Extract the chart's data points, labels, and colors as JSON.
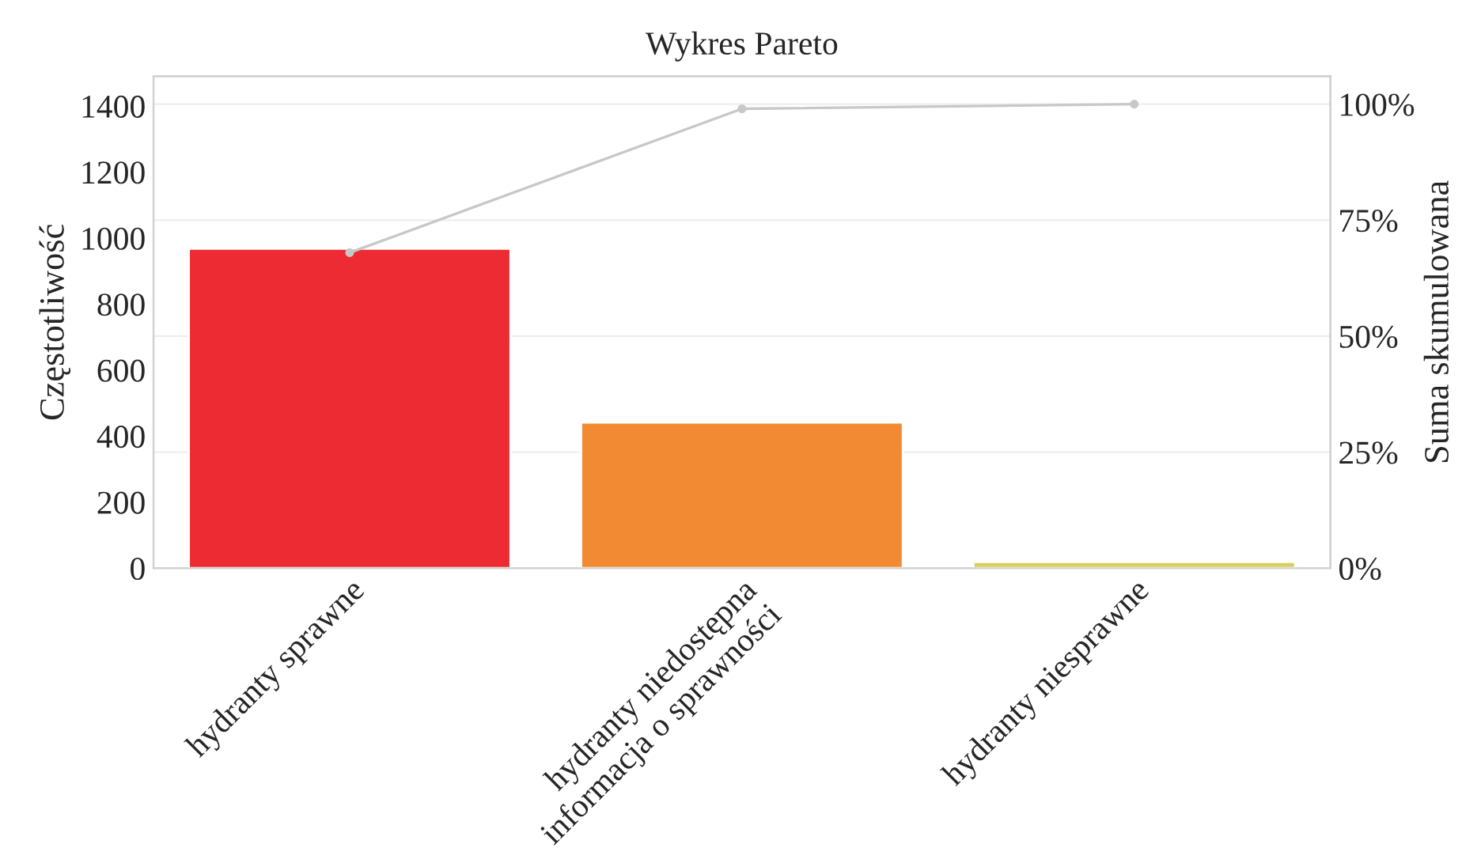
{
  "chart_data": {
    "type": "bar",
    "title": "Wykres Pareto",
    "ylabel": "Częstotliwość",
    "y2label": "Suma skumulowana",
    "categories": [
      "hydranty sprawne",
      "hydranty niedostępna\ninformacja o sprawności",
      "hydranty niesprawne"
    ],
    "series": [
      {
        "type": "bar",
        "colors": [
          "#ec2b32",
          "#f18a33",
          "#d9d05a"
        ],
        "values": [
          968,
          441,
          19
        ]
      },
      {
        "type": "line",
        "axis": "y2",
        "color": "#c8c8c8",
        "values": [
          68,
          99,
          100
        ],
        "marker": "circle"
      }
    ],
    "ylim": [
      0,
      1490
    ],
    "yticks": [
      0,
      200,
      400,
      600,
      800,
      1000,
      1200,
      1400
    ],
    "y2lim": [
      0,
      106
    ],
    "y2ticks": [
      {
        "value": 0,
        "label": "0%"
      },
      {
        "value": 25,
        "label": "25%"
      },
      {
        "value": 50,
        "label": "50%"
      },
      {
        "value": 75,
        "label": "75%"
      },
      {
        "value": 100,
        "label": "100%"
      }
    ],
    "grid": "y2",
    "legend": false
  }
}
